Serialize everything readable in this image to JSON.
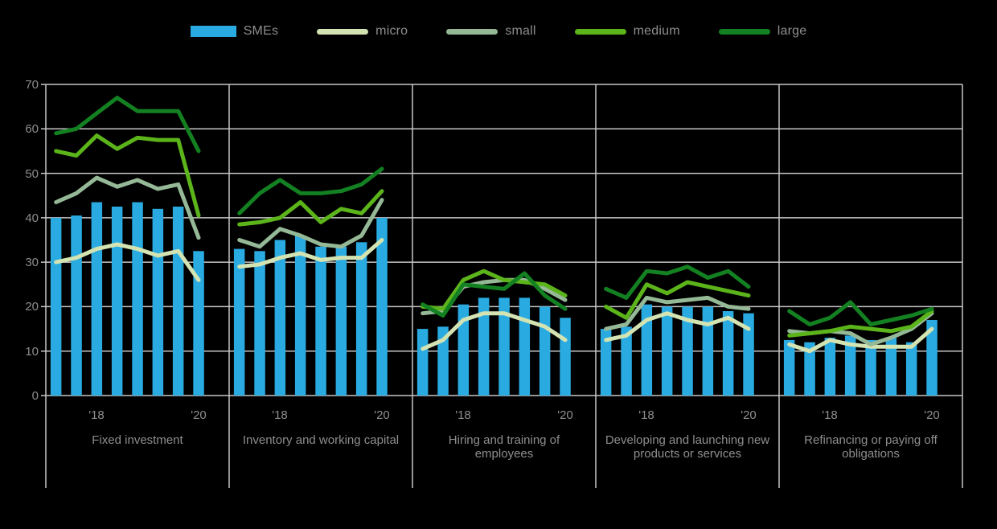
{
  "legend": {
    "items": [
      {
        "label": "SMEs",
        "color": "#29ABE2",
        "type": "bar"
      },
      {
        "label": "micro",
        "color": "#D3E3B2",
        "type": "line"
      },
      {
        "label": "small",
        "color": "#95B996",
        "type": "line"
      },
      {
        "label": "medium",
        "color": "#5CB41B",
        "type": "line"
      },
      {
        "label": "large",
        "color": "#138021",
        "type": "line"
      }
    ]
  },
  "axes": {
    "y_ticks": [
      "70",
      "60",
      "50",
      "40",
      "30",
      "20",
      "10",
      "0"
    ],
    "x_tick_labels": [
      "'18",
      "'20"
    ]
  },
  "colors": {
    "background": "#000000",
    "gridline": "#C6C6C6",
    "text": "#8E8E8E"
  },
  "chart_data": {
    "type": "bar",
    "subtype": "grouped panels of bars (SMEs) with overlaid lines (micro, small, medium, large)",
    "ylim": [
      0,
      70
    ],
    "y_ticks": [
      70,
      60,
      50,
      40,
      30,
      20,
      10,
      0
    ],
    "grid": true,
    "legend_position": "top",
    "points_per_panel": 8,
    "x_tick_labels": [
      "'18",
      "'20"
    ],
    "x_tick_slots": [
      2,
      7
    ],
    "series_names": [
      "SMEs",
      "micro",
      "small",
      "medium",
      "large"
    ],
    "colors": {
      "SMEs": "#29ABE2",
      "micro": "#D3E3B2",
      "small": "#95B996",
      "medium": "#5CB41B",
      "large": "#138021"
    },
    "panels": [
      {
        "label": "Fixed investment",
        "series": {
          "SMEs": [
            40,
            40.5,
            43.5,
            42.5,
            43.5,
            42,
            42.5,
            32.5
          ],
          "micro": [
            30,
            31,
            33,
            34,
            33,
            31.5,
            32.5,
            26
          ],
          "small": [
            43.5,
            45.5,
            49,
            47,
            48.5,
            46.5,
            47.5,
            35.5
          ],
          "medium": [
            55,
            54,
            58.5,
            55.5,
            58,
            57.5,
            57.5,
            40.5
          ],
          "large": [
            59,
            60,
            63.5,
            67,
            64,
            64,
            64,
            55
          ]
        }
      },
      {
        "label": "Inventory and working capital",
        "series": {
          "SMEs": [
            33,
            32.5,
            35,
            36,
            33.5,
            33.5,
            34.5,
            40
          ],
          "micro": [
            29,
            29.5,
            31,
            32,
            30.5,
            31,
            31,
            35
          ],
          "small": [
            35,
            33.5,
            37.5,
            36,
            34,
            33.5,
            36,
            44
          ],
          "medium": [
            38.5,
            39,
            40,
            43.5,
            39,
            42,
            41,
            46
          ],
          "large": [
            41,
            45.5,
            48.5,
            45.5,
            45.5,
            46,
            47.5,
            51
          ]
        }
      },
      {
        "label": "Hiring and training of employees",
        "series": {
          "SMEs": [
            15,
            15.5,
            20.5,
            22,
            22,
            22,
            20,
            17.5
          ],
          "micro": [
            10.5,
            12.5,
            17,
            18.5,
            18.5,
            17,
            15.5,
            12.5
          ],
          "small": [
            18.5,
            19,
            24.5,
            25.5,
            26,
            26,
            24,
            21.5
          ],
          "medium": [
            20,
            19.5,
            26,
            28,
            26,
            25.5,
            25,
            22.5
          ],
          "large": [
            20.5,
            18,
            25,
            24.5,
            24,
            27.5,
            22.5,
            19.5
          ]
        }
      },
      {
        "label": "Developing and launching new products or services",
        "series": {
          "SMEs": [
            15,
            15.5,
            20.5,
            20,
            20,
            20,
            19,
            18.5
          ],
          "micro": [
            12.5,
            13.5,
            17,
            18.5,
            17,
            16,
            17.5,
            15
          ],
          "small": [
            15,
            16,
            22,
            21,
            21.5,
            22,
            20,
            19.5
          ],
          "medium": [
            20,
            17.5,
            25,
            23,
            25.5,
            24.5,
            23.5,
            22.5
          ],
          "large": [
            24,
            22,
            28,
            27.5,
            29,
            26.5,
            28,
            24.5
          ]
        }
      },
      {
        "label": "Refinancing or paying off obligations",
        "series": {
          "SMEs": [
            12.5,
            12,
            13,
            13.5,
            12.5,
            13,
            12,
            17
          ],
          "micro": [
            11.5,
            10,
            12.5,
            11.5,
            11,
            11,
            11,
            15
          ],
          "small": [
            14.5,
            14,
            14.5,
            14,
            11.5,
            13,
            15,
            18.5
          ],
          "medium": [
            13.5,
            14,
            14.5,
            15.5,
            15,
            14.5,
            15.5,
            19
          ],
          "large": [
            19,
            16,
            17.5,
            21,
            16,
            17,
            18,
            19.5
          ]
        }
      }
    ]
  }
}
